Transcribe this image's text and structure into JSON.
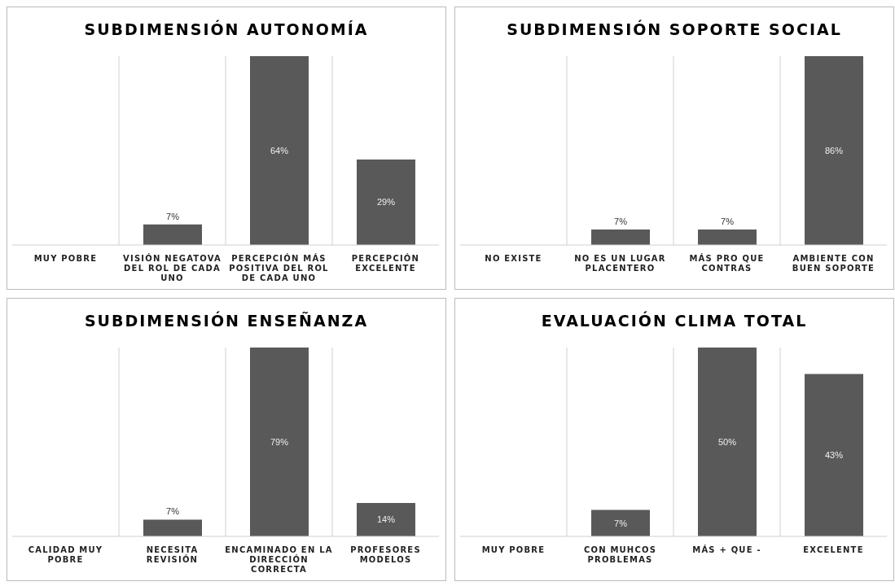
{
  "chart_data": [
    {
      "type": "bar",
      "title": "SUBDIMENSIÓN AUTONOMÍA",
      "grid": "x",
      "categories": [
        "MUY POBRE",
        "VISIÓN NEGATOVA DEL ROL DE CADA UNO",
        "PERCEPCIÓN MÁS POSITIVA DEL ROL DE CADA UNO",
        "PERCEPCIÓN EXCELENTE"
      ],
      "values": [
        null,
        7,
        64,
        29
      ],
      "value_labels": [
        null,
        "7%",
        "64%",
        "29%"
      ],
      "color": "#595959"
    },
    {
      "type": "bar",
      "title": "SUBDIMENSIÓN SOPORTE SOCIAL",
      "grid": "x",
      "categories": [
        "NO EXISTE",
        "NO ES UN LUGAR PLACENTERO",
        "MÁS PRO QUE CONTRAS",
        "AMBIENTE CON BUEN SOPORTE"
      ],
      "values": [
        null,
        7,
        7,
        86
      ],
      "value_labels": [
        null,
        "7%",
        "7%",
        "86%"
      ],
      "color": "#595959"
    },
    {
      "type": "bar",
      "title": "SUBDIMENSIÓN ENSEÑANZA",
      "grid": "x",
      "categories": [
        "CALIDAD MUY POBRE",
        "NECESITA REVISIÓN",
        "ENCAMINADO EN LA DIRECCIÓN CORRECTA",
        "PROFESORES MODELOS"
      ],
      "values": [
        null,
        7,
        79,
        14
      ],
      "value_labels": [
        null,
        "7%",
        "79%",
        "14%"
      ],
      "color": "#595959"
    },
    {
      "type": "bar",
      "title": "EVALUACIÓN CLIMA TOTAL",
      "grid": "x",
      "categories": [
        "MUY POBRE",
        "CON MUHCOS PROBLEMAS",
        "MÁS + QUE -",
        "EXCELENTE"
      ],
      "values": [
        null,
        7,
        50,
        43
      ],
      "value_labels": [
        null,
        "7%",
        "50%",
        "43%"
      ],
      "color": "#595959"
    }
  ]
}
